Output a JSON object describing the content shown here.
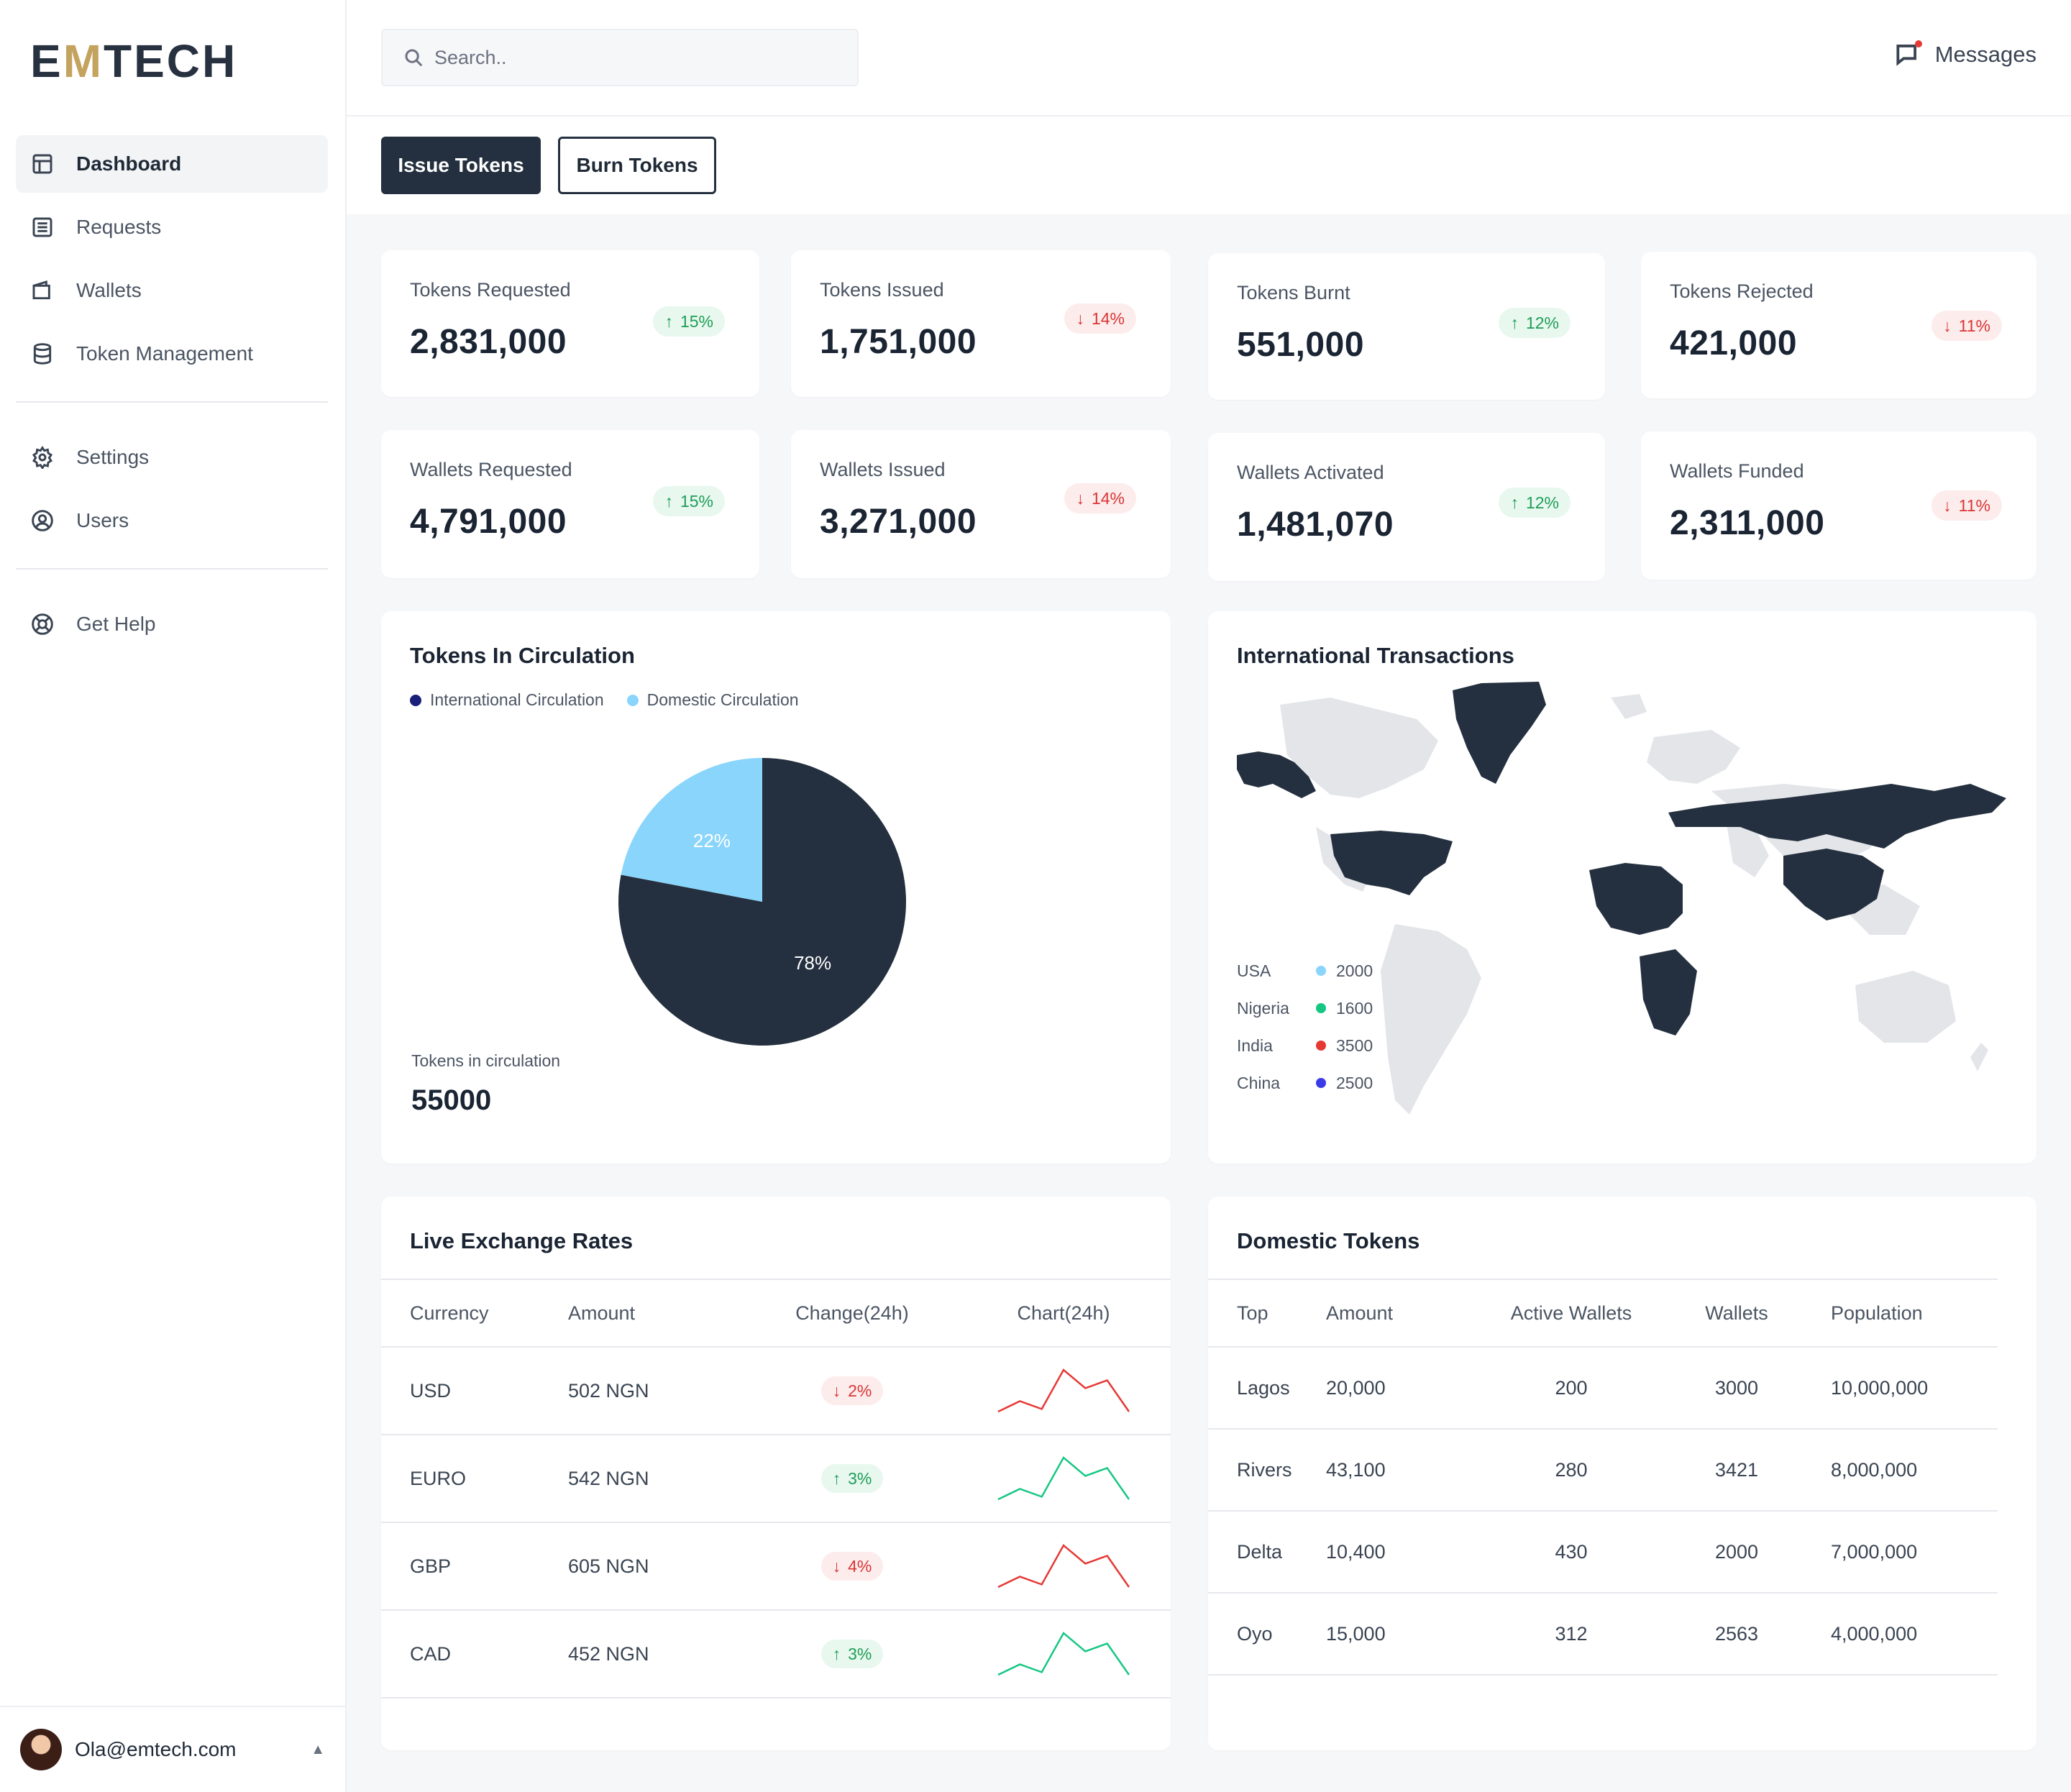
{
  "brand": {
    "logo_pre": "E",
    "logo_m": "M",
    "logo_post": "TECH"
  },
  "sidebar": {
    "items": [
      {
        "label": "Dashboard",
        "icon": "dashboard-icon",
        "active": true
      },
      {
        "label": "Requests",
        "icon": "list-icon"
      },
      {
        "label": "Wallets",
        "icon": "wallet-icon"
      },
      {
        "label": "Token Management",
        "icon": "database-icon"
      },
      {
        "label": "Settings",
        "icon": "gear-icon"
      },
      {
        "label": "Users",
        "icon": "user-circle-icon"
      },
      {
        "label": "Get Help",
        "icon": "help-globe-icon"
      }
    ],
    "user_email": "Ola@emtech.com"
  },
  "header": {
    "search_placeholder": "Search..",
    "messages_label": "Messages"
  },
  "toolbar": {
    "issue_label": "Issue Tokens",
    "burn_label": "Burn Tokens"
  },
  "stats": [
    {
      "label": "Tokens Requested",
      "value": "2,831,000",
      "change": "15%",
      "dir": "up"
    },
    {
      "label": "Tokens Issued",
      "value": "1,751,000",
      "change": "14%",
      "dir": "down"
    },
    {
      "label": "Tokens Burnt",
      "value": "551,000",
      "change": "12%",
      "dir": "up"
    },
    {
      "label": "Tokens Rejected",
      "value": "421,000",
      "change": "11%",
      "dir": "down"
    },
    {
      "label": "Wallets Requested",
      "value": "4,791,000",
      "change": "15%",
      "dir": "up"
    },
    {
      "label": "Wallets Issued",
      "value": "3,271,000",
      "change": "14%",
      "dir": "down"
    },
    {
      "label": "Wallets Activated",
      "value": "1,481,070",
      "change": "12%",
      "dir": "up"
    },
    {
      "label": "Wallets Funded",
      "value": "2,311,000",
      "change": "11%",
      "dir": "down"
    }
  ],
  "circulation": {
    "title": "Tokens In Circulation",
    "legend": [
      {
        "name": "International Circulation",
        "color": "#1a1f7a"
      },
      {
        "name": "Domestic Circulation",
        "color": "#8ad5fb"
      }
    ],
    "total_label": "Tokens in circulation",
    "total_value": "55000"
  },
  "chart_data": {
    "type": "pie",
    "title": "Tokens In Circulation",
    "categories": [
      "International Circulation",
      "Domestic Circulation"
    ],
    "values": [
      78,
      22
    ],
    "labels": [
      "78%",
      "22%"
    ],
    "colors": [
      "#24303f",
      "#8ad5fb"
    ]
  },
  "international": {
    "title": "International Transactions",
    "rows": [
      {
        "country": "USA",
        "value": "2000",
        "color": "#8ad5fb"
      },
      {
        "country": "Nigeria",
        "value": "1600",
        "color": "#16c784"
      },
      {
        "country": "India",
        "value": "3500",
        "color": "#e53935"
      },
      {
        "country": "China",
        "value": "2500",
        "color": "#3b3be8"
      }
    ]
  },
  "rates": {
    "title": "Live Exchange Rates",
    "headers": [
      "Currency",
      "Amount",
      "Change(24h)",
      "Chart(24h)"
    ],
    "rows": [
      {
        "currency": "USD",
        "amount": "502 NGN",
        "change": "2%",
        "dir": "down",
        "spark": [
          2,
          6,
          3,
          18,
          11,
          14,
          2
        ]
      },
      {
        "currency": "EURO",
        "amount": "542 NGN",
        "change": "3%",
        "dir": "up",
        "spark": [
          2,
          6,
          3,
          18,
          11,
          14,
          2
        ]
      },
      {
        "currency": "GBP",
        "amount": "605 NGN",
        "change": "4%",
        "dir": "down",
        "spark": [
          2,
          6,
          3,
          18,
          11,
          14,
          2
        ]
      },
      {
        "currency": "CAD",
        "amount": "452 NGN",
        "change": "3%",
        "dir": "up",
        "spark": [
          2,
          6,
          3,
          18,
          11,
          14,
          2
        ]
      }
    ]
  },
  "domestic": {
    "title": "Domestic Tokens",
    "headers": [
      "Top",
      "Amount",
      "Active Wallets",
      "Wallets",
      "Population"
    ],
    "rows": [
      {
        "top": "Lagos",
        "amount": "20,000",
        "active": "200",
        "wallets": "3000",
        "population": "10,000,000"
      },
      {
        "top": "Rivers",
        "amount": "43,100",
        "active": "280",
        "wallets": "3421",
        "population": "8,000,000"
      },
      {
        "top": "Delta",
        "amount": "10,400",
        "active": "430",
        "wallets": "2000",
        "population": "7,000,000"
      },
      {
        "top": "Oyo",
        "amount": "15,000",
        "active": "312",
        "wallets": "2563",
        "population": "4,000,000"
      }
    ]
  },
  "colors": {
    "dark": "#24303f",
    "up": "#1f9d57",
    "down": "#d93636",
    "spark_up": "#16c784",
    "spark_down": "#e53935"
  }
}
